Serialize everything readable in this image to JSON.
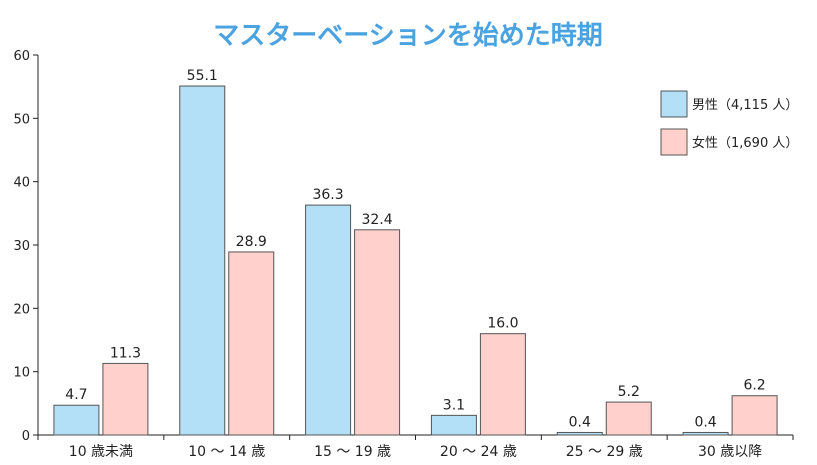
{
  "colors": {
    "male": "#b3e0f7",
    "male_stroke": "#555555",
    "female": "#ffd0cc",
    "female_stroke": "#555555",
    "title_fill": "#4aa3e0",
    "title_stroke": "#ffffff",
    "axis": "#222222"
  },
  "chart_data": {
    "type": "bar",
    "title": "マスターベーションを始めた時期",
    "categories": [
      "10 歳未満",
      "10 ～ 14 歳",
      "15 ～ 19 歳",
      "20 ～ 24 歳",
      "25 ～ 29 歳",
      "30 歳以降"
    ],
    "series": [
      {
        "name": "男性（4,115 人）",
        "values": [
          4.7,
          55.1,
          36.3,
          3.1,
          0.4,
          0.4
        ],
        "labels": [
          "4.7",
          "55.1",
          "36.3",
          "3.1",
          "0.4",
          "0.4"
        ]
      },
      {
        "name": "女性（1,690 人）",
        "values": [
          11.3,
          28.9,
          32.4,
          16.0,
          5.2,
          6.2
        ],
        "labels": [
          "11.3",
          "28.9",
          "32.4",
          "16.0",
          "5.2",
          "6.2"
        ]
      }
    ],
    "ylim": [
      0,
      60
    ],
    "yticks": [
      "0",
      "10",
      "20",
      "30",
      "40",
      "50",
      "60"
    ],
    "legend_position": "top-right",
    "grid": false
  }
}
